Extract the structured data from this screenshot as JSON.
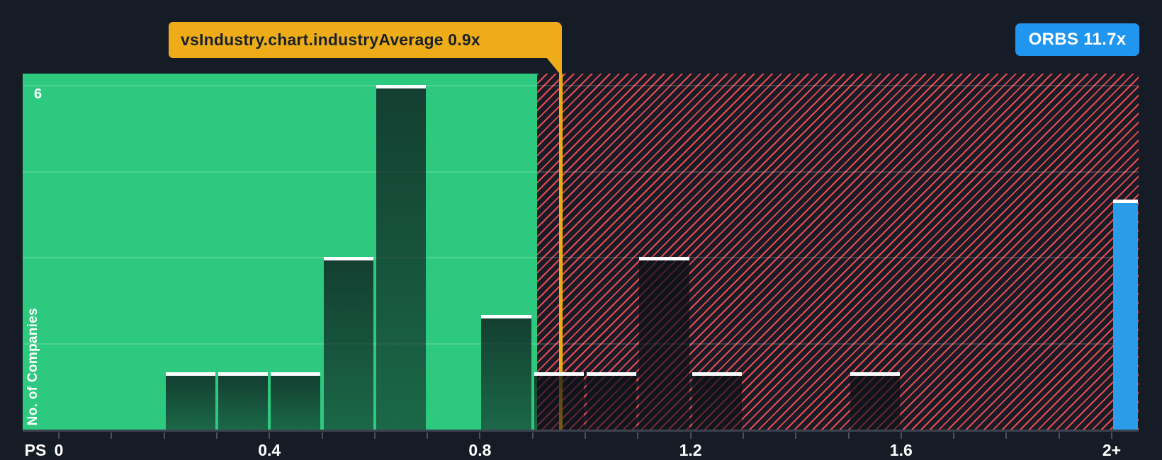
{
  "tooltip": {
    "label": "vsIndustry.chart.industryAverage 0.9x"
  },
  "badge": {
    "label": "ORBS 11.7x"
  },
  "chart_data": {
    "type": "bar",
    "subtype": "histogram",
    "ylabel": "No. of Companies",
    "y_tick_label": "6",
    "x_prefix": "PS",
    "x_ticks": [
      {
        "v": 0.0,
        "label": "0"
      },
      {
        "v": 0.4,
        "label": "0.4"
      },
      {
        "v": 0.8,
        "label": "0.8"
      },
      {
        "v": 1.2,
        "label": "1.2"
      },
      {
        "v": 1.6,
        "label": "1.6"
      },
      {
        "v": 2.0,
        "label": "2+"
      }
    ],
    "x_minor_tick_step": 0.1,
    "x_range": [
      0,
      2.1
    ],
    "y_range": [
      0,
      6.2
    ],
    "grid_values": [
      1.5,
      3,
      4.5,
      6
    ],
    "grid": true,
    "bin_width": 0.1,
    "industry_average": 0.9,
    "industry_average_label": "0.9x",
    "bins": [
      {
        "x": 0.2,
        "count": 1
      },
      {
        "x": 0.3,
        "count": 1
      },
      {
        "x": 0.4,
        "count": 1
      },
      {
        "x": 0.5,
        "count": 3
      },
      {
        "x": 0.6,
        "count": 6
      },
      {
        "x": 0.8,
        "count": 2
      },
      {
        "x": 0.9,
        "count": 1
      },
      {
        "x": 1.0,
        "count": 1
      },
      {
        "x": 1.1,
        "count": 3
      },
      {
        "x": 1.2,
        "count": 1
      },
      {
        "x": 1.5,
        "count": 1
      }
    ],
    "company": {
      "name": "ORBS",
      "value_label": "11.7x",
      "bin_start": 2.0,
      "count": 4
    },
    "colors": {
      "background": "#161c26",
      "below_average_zone": "#2dc97e",
      "above_average_hatch": "#ee4a51",
      "marker_yellow": "#eead18",
      "badge_blue": "#2196f0",
      "company_bar_blue": "#2b9ce8",
      "bar_cap_white": "#ffffff"
    }
  }
}
